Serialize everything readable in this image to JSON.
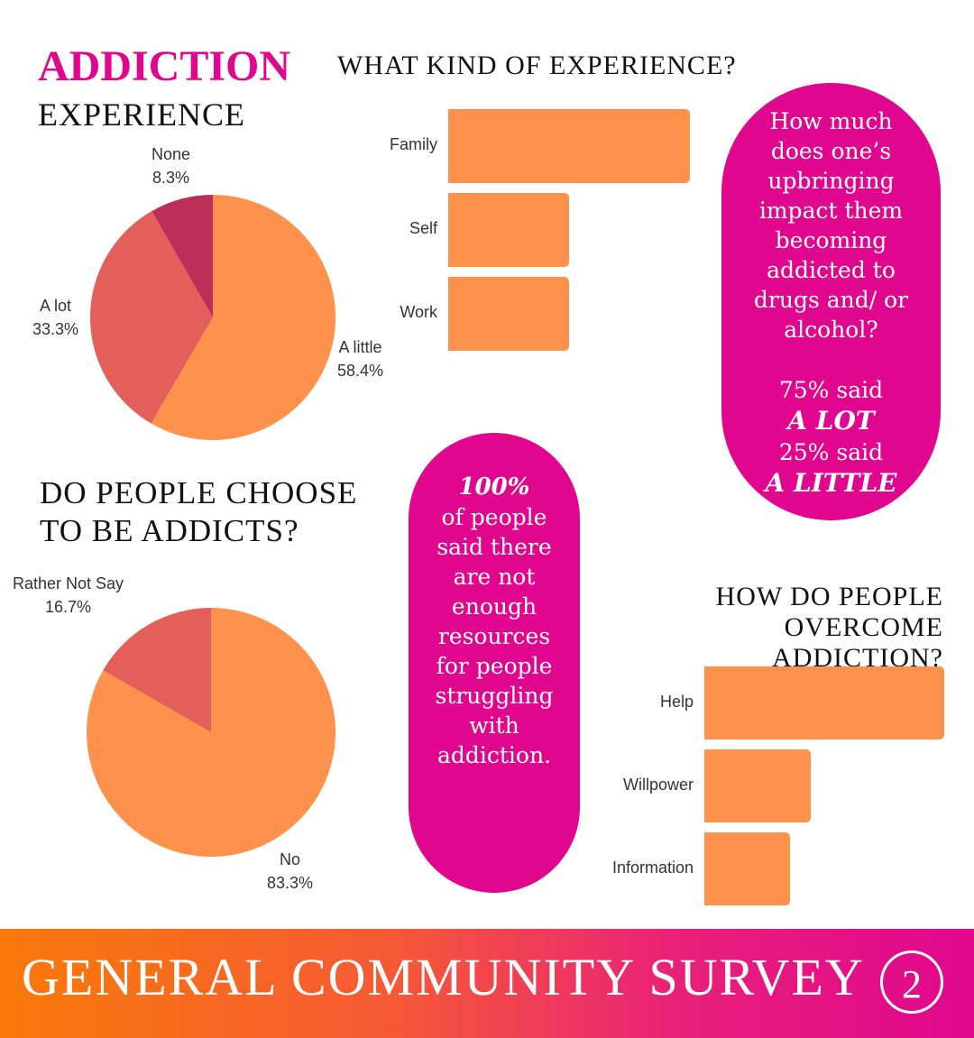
{
  "header": {
    "title": "ADDICTION",
    "subtitle": "EXPERIENCE"
  },
  "pill_upbringing": {
    "question": "How much does one’s upbringing impact them becoming addicted to drugs and/ or alcohol?",
    "stat1_value": "75% said",
    "stat1_answer": "A LOT",
    "stat2_value": "25% said",
    "stat2_answer": "A LITTLE"
  },
  "pill_resources": {
    "stat": "100%",
    "text": "of people said there are not enough resources for people struggling with addiction."
  },
  "footer": {
    "title": "GENERAL COMMUNITY SURVEY",
    "badge": "2"
  },
  "colors": {
    "accent": "#e0078e",
    "bar": "#fe914c",
    "pie_orange": "#fe914c",
    "pie_red": "#e3605a",
    "pie_dark": "#bc2f58"
  },
  "chart_data": [
    {
      "type": "pie",
      "title": "",
      "slices": [
        {
          "label": "A little",
          "value": 58.4,
          "display": "58.4%",
          "color": "#fe914c"
        },
        {
          "label": "A lot",
          "value": 33.3,
          "display": "33.3%",
          "color": "#e3605a"
        },
        {
          "label": "None",
          "value": 8.3,
          "display": "8.3%",
          "color": "#bc2f58"
        }
      ]
    },
    {
      "type": "bar",
      "title": "WHAT KIND OF EXPERIENCE?",
      "orientation": "horizontal",
      "categories": [
        "Family",
        "Self",
        "Work"
      ],
      "values": [
        2,
        1,
        1
      ],
      "color": "#fe914c"
    },
    {
      "type": "pie",
      "title": "DO PEOPLE CHOOSE TO BE ADDICTS?",
      "slices": [
        {
          "label": "No",
          "value": 83.3,
          "display": "83.3%",
          "color": "#fe914c"
        },
        {
          "label": "Rather Not Say",
          "value": 16.7,
          "display": "16.7%",
          "color": "#e3605a"
        }
      ]
    },
    {
      "type": "bar",
      "title": "HOW DO PEOPLE OVERCOME ADDICTION?",
      "orientation": "horizontal",
      "categories": [
        "Help",
        "Willpower",
        "Information"
      ],
      "values": [
        2.25,
        1,
        0.8
      ],
      "color": "#fe914c"
    }
  ]
}
